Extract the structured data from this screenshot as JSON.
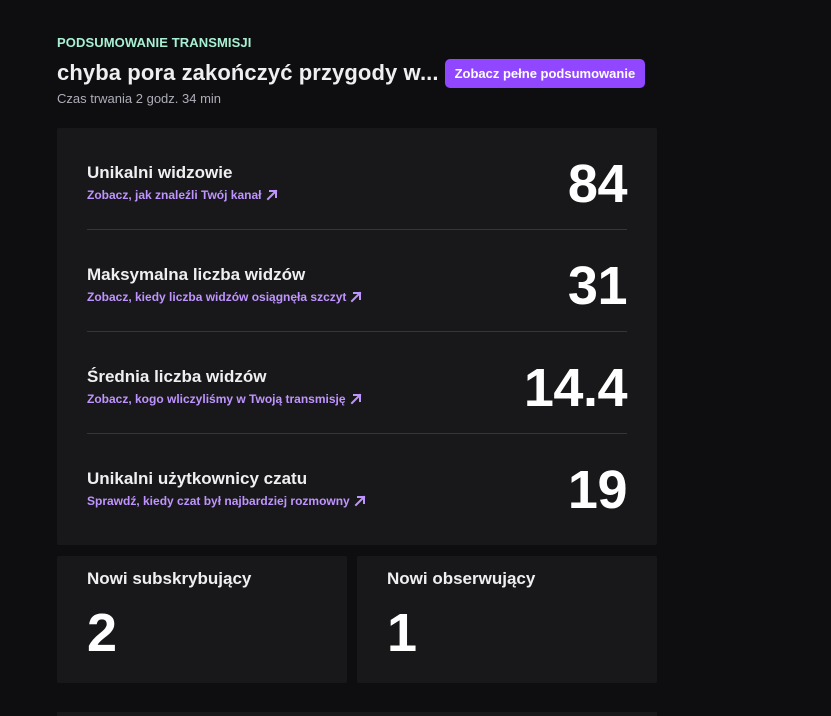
{
  "header": {
    "eyebrow": "PODSUMOWANIE TRANSMISJI",
    "title": "chyba pora zakończyć przygody w...",
    "summary_button": "Zobacz pełne podsumowanie",
    "duration": "Czas trwania 2 godz. 34 min"
  },
  "stats": [
    {
      "label": "Unikalni widzowie",
      "link": "Zobacz, jak znaleźli Twój kanał",
      "value": "84"
    },
    {
      "label": "Maksymalna liczba widzów",
      "link": "Zobacz, kiedy liczba widzów osiągnęła szczyt",
      "value": "31"
    },
    {
      "label": "Średnia liczba widzów",
      "link": "Zobacz, kogo wliczyliśmy w Twoją transmisję",
      "value": "14.4"
    },
    {
      "label": "Unikalni użytkownicy czatu",
      "link": "Sprawdź, kiedy czat był najbardziej rozmowny",
      "value": "19"
    }
  ],
  "mini_stats": {
    "subscribers": {
      "label": "Nowi subskrybujący",
      "value": "2"
    },
    "followers": {
      "label": "Nowi obserwujący",
      "value": "1"
    }
  },
  "icons": {
    "link_arrow": "arrow-up-right-icon"
  },
  "colors": {
    "background": "#0e0e10",
    "card": "#18181b",
    "accent": "#9147ff",
    "link": "#bf94ff",
    "eyebrow": "#a7f0d4"
  }
}
